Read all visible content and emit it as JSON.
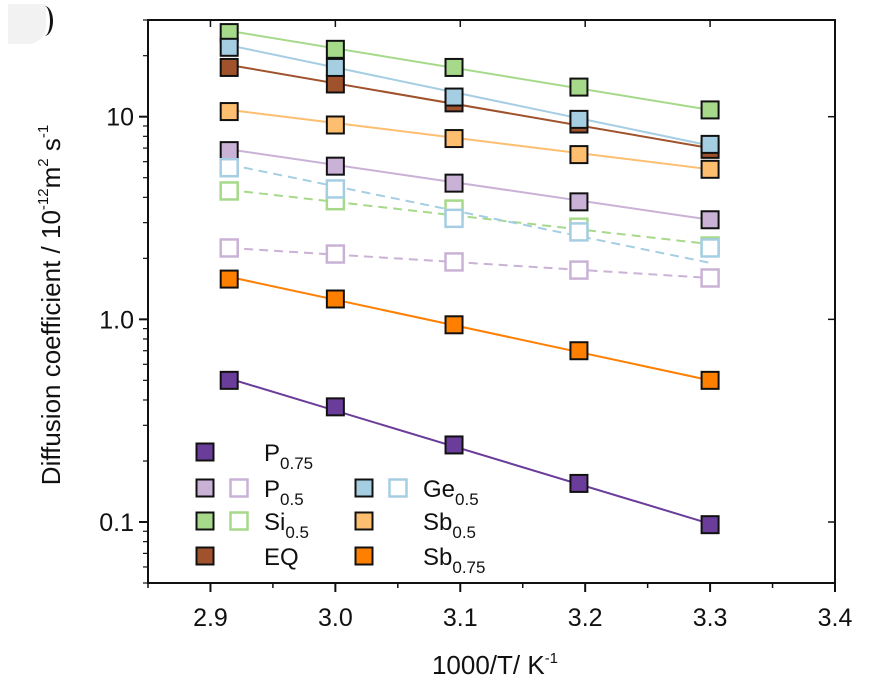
{
  "chart_data": {
    "type": "scatter",
    "title": "",
    "xlabel": "1000/T/ K",
    "xlabel_sup": "-1",
    "ylabel_prefix": "Diffusion coefficient / 10",
    "ylabel_exp": "-12",
    "ylabel_unit": "m",
    "ylabel_unit_sup": "2",
    "ylabel_s": " s",
    "ylabel_s_sup": "-1",
    "yscale": "log",
    "xlim": [
      2.85,
      3.4
    ],
    "ylim": [
      0.05,
      30
    ],
    "x_ticks": [
      2.9,
      3.0,
      3.1,
      3.2,
      3.3,
      3.4
    ],
    "x_tick_labels": [
      "2.9",
      "3.0",
      "3.1",
      "3.2",
      "3.3",
      "3.4"
    ],
    "y_ticks": [
      0.1,
      1.0,
      10
    ],
    "y_tick_labels": [
      "0.1",
      "1.0",
      "10"
    ],
    "x": [
      2.915,
      3.0,
      3.095,
      3.195,
      3.3
    ],
    "series": [
      {
        "name": "P0.75 solid",
        "label": "P",
        "sub": "0.75",
        "style": "filled",
        "color": "#6a3d9a",
        "edge": "#111111",
        "values": [
          0.5,
          0.37,
          0.24,
          0.155,
          0.097
        ],
        "line": "solid",
        "fit": [
          0.51,
          0.098
        ]
      },
      {
        "name": "P0.5 solid",
        "label": "P",
        "sub": "0.5",
        "style": "filled",
        "color": "#c9b2d6",
        "edge": "#111111",
        "values": [
          6.8,
          5.7,
          4.7,
          3.8,
          3.1
        ],
        "line": "solid",
        "fit": [
          6.9,
          3.1
        ]
      },
      {
        "name": "P0.5 open",
        "label": "P",
        "sub": "0.5",
        "style": "open",
        "color": "#c9b2d6",
        "edge": "#c9b2d6",
        "values": [
          2.25,
          2.1,
          1.92,
          1.75,
          1.6
        ],
        "line": "dashed",
        "fit": [
          2.25,
          1.6
        ]
      },
      {
        "name": "Si0.5 solid",
        "label": "Si",
        "sub": "0.5",
        "style": "filled",
        "color": "#a6d98a",
        "edge": "#111111",
        "values": [
          26,
          21.5,
          17.5,
          14,
          10.8
        ],
        "line": "solid",
        "fit": [
          26.5,
          10.8
        ]
      },
      {
        "name": "Si0.5 open",
        "label": "Si",
        "sub": "0.5",
        "style": "open",
        "color": "#a6d98a",
        "edge": "#a6d98a",
        "values": [
          4.3,
          3.85,
          3.5,
          2.85,
          2.3
        ],
        "line": "dashed",
        "fit": [
          4.35,
          2.35
        ]
      },
      {
        "name": "EQ",
        "label": "EQ",
        "sub": "",
        "style": "filled",
        "color": "#a0522d",
        "edge": "#111111",
        "values": [
          17.5,
          14.5,
          11.7,
          9.2,
          6.9
        ],
        "line": "solid",
        "fit": [
          18,
          7.0
        ]
      },
      {
        "name": "Ge0.5 solid",
        "label": "Ge",
        "sub": "0.5",
        "style": "filled",
        "color": "#a6cee3",
        "edge": "#111111",
        "values": [
          22,
          17.5,
          12.5,
          9.7,
          7.3
        ],
        "line": "solid",
        "fit": [
          22.5,
          7.2
        ]
      },
      {
        "name": "Ge0.5 open",
        "label": "Ge",
        "sub": "0.5",
        "style": "open",
        "color": "#a6cee3",
        "edge": "#a6cee3",
        "values": [
          5.6,
          4.4,
          3.15,
          2.7,
          2.25
        ],
        "line": "dashed",
        "fit": [
          5.8,
          1.9
        ]
      },
      {
        "name": "Sb0.5",
        "label": "Sb",
        "sub": "0.5",
        "style": "filled",
        "color": "#fdbf6f",
        "edge": "#111111",
        "values": [
          10.6,
          9.1,
          7.8,
          6.5,
          5.5
        ],
        "line": "solid",
        "fit": [
          10.8,
          5.5
        ]
      },
      {
        "name": "Sb0.75",
        "label": "Sb",
        "sub": "0.75",
        "style": "filled",
        "color": "#ff7f00",
        "edge": "#111111",
        "values": [
          1.58,
          1.26,
          0.94,
          0.7,
          0.5
        ],
        "line": "solid",
        "fit": [
          1.62,
          0.5
        ]
      }
    ],
    "legend": [
      {
        "row": 0,
        "col": 0,
        "markers": [
          "#6a3d9a:filled"
        ],
        "label": "P",
        "sub": "0.75"
      },
      {
        "row": 1,
        "col": 0,
        "markers": [
          "#c9b2d6:filled",
          "#c9b2d6:open"
        ],
        "label": "P",
        "sub": "0.5"
      },
      {
        "row": 2,
        "col": 0,
        "markers": [
          "#a6d98a:filled",
          "#a6d98a:open"
        ],
        "label": "Si",
        "sub": "0.5"
      },
      {
        "row": 3,
        "col": 0,
        "markers": [
          "#a0522d:filled"
        ],
        "label": "EQ",
        "sub": ""
      },
      {
        "row": 1,
        "col": 1,
        "markers": [
          "#a6cee3:filled",
          "#a6cee3:open"
        ],
        "label": "Ge",
        "sub": "0.5"
      },
      {
        "row": 2,
        "col": 1,
        "markers": [
          "#fdbf6f:filled"
        ],
        "label": "Sb",
        "sub": "0.5"
      },
      {
        "row": 3,
        "col": 1,
        "markers": [
          "#ff7f00:filled"
        ],
        "label": "Sb",
        "sub": "0.75"
      }
    ],
    "legend_position": "bottom-left",
    "grid": false
  }
}
